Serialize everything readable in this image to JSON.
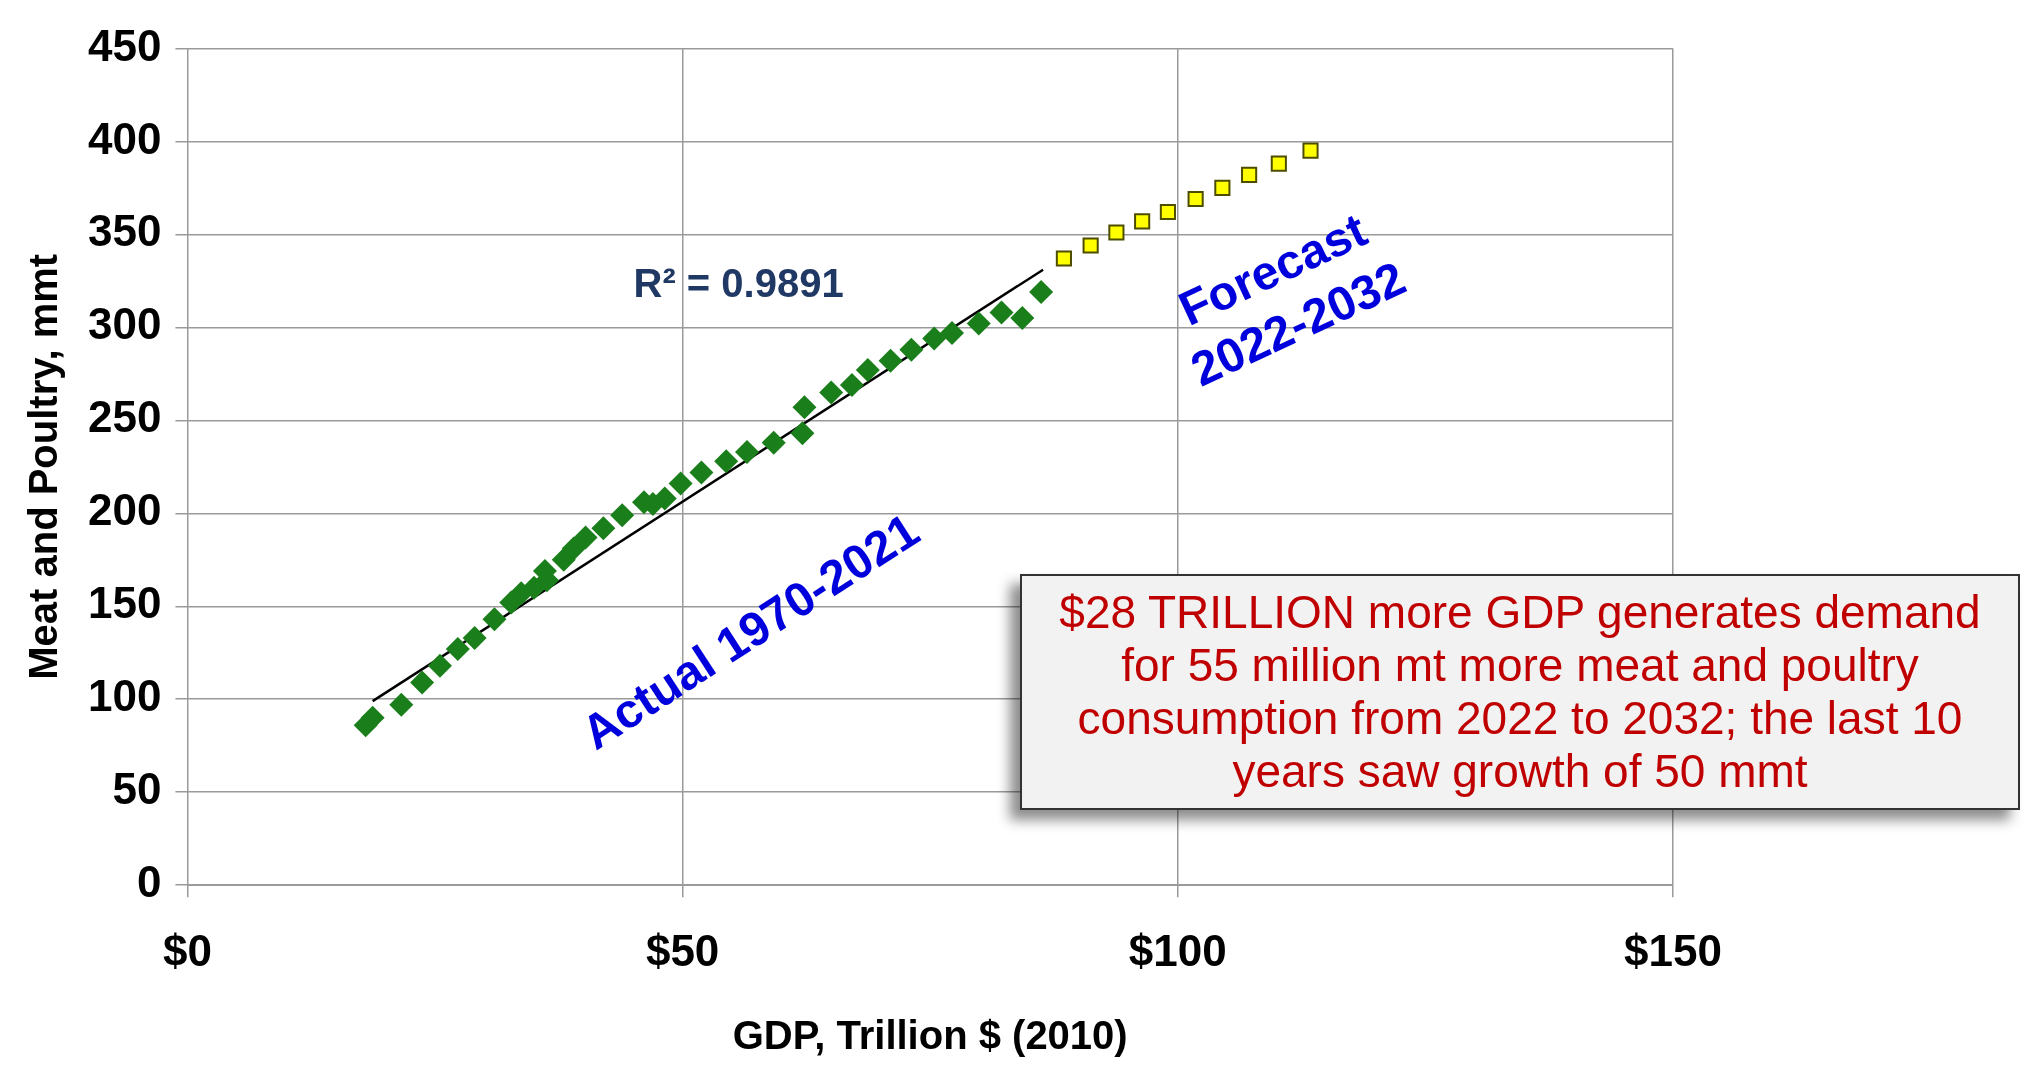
{
  "chart_data": {
    "type": "scatter",
    "xlabel": "GDP, Trillion $ (2010)",
    "ylabel": "Meat and Poultry, mmt",
    "xlim": [
      0,
      150
    ],
    "xticks": [
      {
        "value": 0,
        "label": "$0"
      },
      {
        "value": 50,
        "label": "$50"
      },
      {
        "value": 100,
        "label": "$100"
      },
      {
        "value": 150,
        "label": "$150"
      }
    ],
    "ylim": [
      0,
      450
    ],
    "yticks": [
      0,
      50,
      100,
      150,
      200,
      250,
      300,
      350,
      400,
      450
    ],
    "grid": true,
    "series": [
      {
        "type": "scatter",
        "marker": "diamond",
        "color": "#1a7f1a",
        "x": [
          18.0,
          18.7,
          21.6,
          23.7,
          25.5,
          27.3,
          29,
          31,
          32.7,
          33.7,
          35,
          36.1,
          36.3,
          38,
          39.0,
          40.2,
          42,
          43.9,
          46.1,
          47,
          48.2,
          49.8,
          51.9,
          54.4,
          56.5,
          59.2,
          62.1,
          62.3,
          65.0,
          67.1,
          68.7,
          71.0,
          73.1,
          75.4,
          77.2,
          79.9,
          82.2,
          84.3,
          86.2
        ],
        "values": [
          86,
          90,
          97,
          109,
          118,
          127,
          133,
          143,
          152,
          157,
          160,
          169,
          164,
          175,
          181,
          187,
          192,
          199,
          206,
          205,
          208,
          216,
          222,
          228,
          233,
          238,
          243,
          257,
          265,
          269,
          277,
          282,
          288,
          294,
          297,
          302,
          308,
          305,
          319
        ]
      },
      {
        "type": "scatter",
        "marker": "square",
        "color": "#ffff00",
        "x": [
          88.5,
          91.2,
          93.8,
          96.4,
          99.0,
          101.8,
          104.5,
          107.2,
          110.2,
          113.4
        ],
        "values": [
          337,
          344,
          351,
          357,
          362,
          369,
          375,
          382,
          388,
          395
        ]
      },
      {
        "type": "line",
        "color": "#000000",
        "x": [
          18.7,
          86.4
        ],
        "values": [
          99,
          331
        ]
      }
    ],
    "annotations": [
      "R² = 0.9891",
      "Actual 1970-2021",
      "Forecast 2022-2032",
      "$28 TRILLION more GDP generates demand for 55 million mt more meat and poultry consumption from 2022 to 2032; the last 10 years saw growth of 50 mmt"
    ]
  }
}
